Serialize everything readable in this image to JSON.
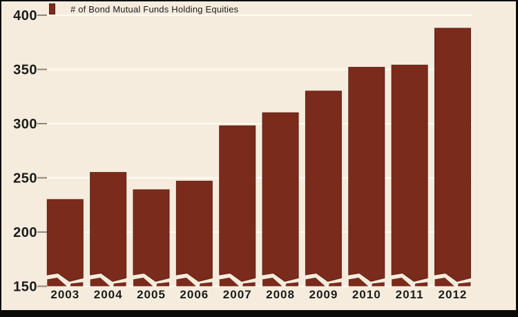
{
  "legend": {
    "label": "# of Bond Mutual Funds Holding Equities"
  },
  "chart_data": {
    "type": "bar",
    "title": "# of Bond Mutual Funds Holding Equities",
    "categories": [
      "2003",
      "2004",
      "2005",
      "2006",
      "2007",
      "2008",
      "2009",
      "2010",
      "2011",
      "2012"
    ],
    "values": [
      230,
      255,
      239,
      247,
      298,
      310,
      330,
      352,
      354,
      388
    ],
    "xlabel": "",
    "ylabel": "",
    "ylim": [
      150,
      400
    ],
    "yticks": [
      150,
      200,
      250,
      300,
      350,
      400
    ],
    "axis_break_at_bottom": true,
    "grid": "horizontal gridlines every 50 units",
    "legend_position": "top-left",
    "colors": {
      "bar": "#7a2b1c",
      "bar_outline": "#632112",
      "background": "#f5ecdd",
      "gridline": "#fffdf4",
      "tick_dash": "#8d8577",
      "text": "#1b1b1b",
      "frame": "#0b0a09"
    }
  }
}
